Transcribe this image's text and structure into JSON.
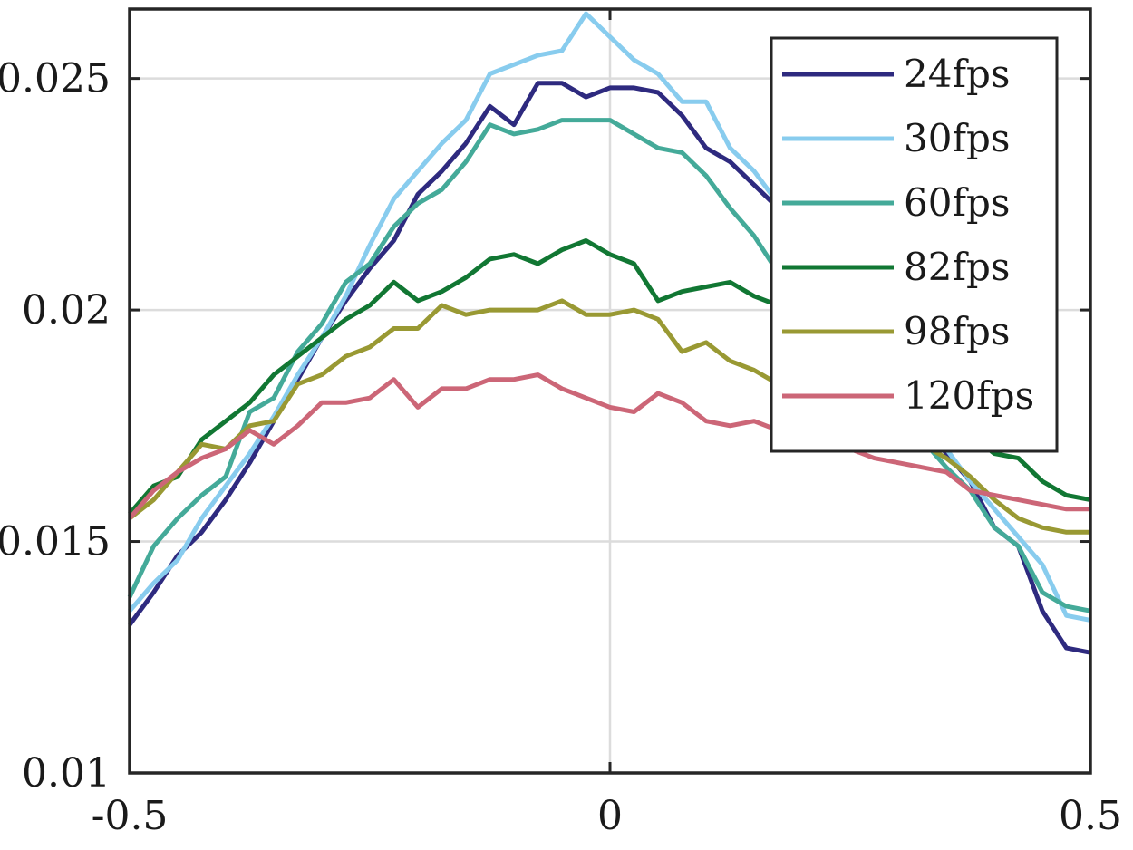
{
  "chart_data": {
    "type": "line",
    "title": "",
    "xlabel": "",
    "ylabel": "",
    "xlim": [
      -0.5,
      0.5
    ],
    "ylim": [
      0.01,
      0.0265
    ],
    "grid": true,
    "legend_position": "top-right",
    "x_ticks": [
      {
        "value": -0.5,
        "label": "-0.5"
      },
      {
        "value": 0,
        "label": "0"
      },
      {
        "value": 0.5,
        "label": "0.5"
      }
    ],
    "y_ticks": [
      {
        "value": 0.01,
        "label": "0.01"
      },
      {
        "value": 0.015,
        "label": "0.015"
      },
      {
        "value": 0.02,
        "label": "0.02"
      },
      {
        "value": 0.025,
        "label": "0.025"
      }
    ],
    "x": [
      -0.5,
      -0.475,
      -0.45,
      -0.425,
      -0.4,
      -0.375,
      -0.35,
      -0.325,
      -0.3,
      -0.275,
      -0.25,
      -0.225,
      -0.2,
      -0.175,
      -0.15,
      -0.125,
      -0.1,
      -0.075,
      -0.05,
      -0.025,
      0,
      0.025,
      0.05,
      0.075,
      0.1,
      0.125,
      0.15,
      0.175,
      0.2,
      0.225,
      0.25,
      0.275,
      0.3,
      0.325,
      0.35,
      0.375,
      0.4,
      0.425,
      0.45,
      0.475,
      0.5
    ],
    "series": [
      {
        "name": "24fps",
        "color": "#2e2a7f",
        "values": [
          0.0132,
          0.0139,
          0.0147,
          0.0152,
          0.0159,
          0.0167,
          0.0176,
          0.0185,
          0.0194,
          0.0202,
          0.0209,
          0.0215,
          0.0225,
          0.023,
          0.0236,
          0.0244,
          0.024,
          0.0249,
          0.0249,
          0.0246,
          0.0248,
          0.0248,
          0.0247,
          0.0242,
          0.0235,
          0.0232,
          0.0227,
          0.0222,
          0.0216,
          0.0209,
          0.0201,
          0.0193,
          0.0184,
          0.0176,
          0.0169,
          0.0163,
          0.0153,
          0.0149,
          0.0135,
          0.0127,
          0.0126
        ]
      },
      {
        "name": "30fps",
        "color": "#88ccee",
        "values": [
          0.0135,
          0.0141,
          0.0146,
          0.0155,
          0.0162,
          0.0169,
          0.0177,
          0.0186,
          0.0194,
          0.0203,
          0.0214,
          0.0224,
          0.023,
          0.0236,
          0.0241,
          0.0251,
          0.0253,
          0.0255,
          0.0256,
          0.0264,
          0.0259,
          0.0254,
          0.0251,
          0.0245,
          0.0245,
          0.0235,
          0.023,
          0.0223,
          0.0216,
          0.0209,
          0.0202,
          0.0194,
          0.0186,
          0.0178,
          0.017,
          0.0163,
          0.0157,
          0.0151,
          0.0145,
          0.0134,
          0.0133
        ]
      },
      {
        "name": "60fps",
        "color": "#44aa99",
        "values": [
          0.0138,
          0.0149,
          0.0155,
          0.016,
          0.0164,
          0.0178,
          0.0181,
          0.0191,
          0.0197,
          0.0206,
          0.021,
          0.0218,
          0.0223,
          0.0226,
          0.0232,
          0.024,
          0.0238,
          0.0239,
          0.0241,
          0.0241,
          0.0241,
          0.0238,
          0.0235,
          0.0234,
          0.0229,
          0.0222,
          0.0216,
          0.0208,
          0.0202,
          0.0196,
          0.019,
          0.0183,
          0.0177,
          0.0172,
          0.0166,
          0.0161,
          0.0153,
          0.0149,
          0.0139,
          0.0136,
          0.0135
        ]
      },
      {
        "name": "82fps",
        "color": "#117733",
        "values": [
          0.0156,
          0.0162,
          0.0164,
          0.0172,
          0.0176,
          0.018,
          0.0186,
          0.019,
          0.0194,
          0.0198,
          0.0201,
          0.0206,
          0.0202,
          0.0204,
          0.0207,
          0.0211,
          0.0212,
          0.021,
          0.0213,
          0.0215,
          0.0212,
          0.021,
          0.0202,
          0.0204,
          0.0205,
          0.0206,
          0.0203,
          0.0201,
          0.0198,
          0.0194,
          0.019,
          0.0186,
          0.0182,
          0.0179,
          0.0176,
          0.0173,
          0.0169,
          0.0168,
          0.0163,
          0.016,
          0.0159
        ]
      },
      {
        "name": "98fps",
        "color": "#999933",
        "values": [
          0.0155,
          0.0159,
          0.0165,
          0.0171,
          0.017,
          0.0175,
          0.0176,
          0.0184,
          0.0186,
          0.019,
          0.0192,
          0.0196,
          0.0196,
          0.0201,
          0.0199,
          0.02,
          0.02,
          0.02,
          0.0202,
          0.0199,
          0.0199,
          0.02,
          0.0198,
          0.0191,
          0.0193,
          0.0189,
          0.0187,
          0.0184,
          0.0182,
          0.018,
          0.0178,
          0.0176,
          0.0174,
          0.0171,
          0.0168,
          0.0164,
          0.0159,
          0.0155,
          0.0153,
          0.0152,
          0.0152
        ]
      },
      {
        "name": "120fps",
        "color": "#cc6677",
        "values": [
          0.0155,
          0.0161,
          0.0165,
          0.0168,
          0.017,
          0.0174,
          0.0171,
          0.0175,
          0.018,
          0.018,
          0.0181,
          0.0185,
          0.0179,
          0.0183,
          0.0183,
          0.0185,
          0.0185,
          0.0186,
          0.0183,
          0.0181,
          0.0179,
          0.0178,
          0.0182,
          0.018,
          0.0176,
          0.0175,
          0.0176,
          0.0174,
          0.0173,
          0.0172,
          0.017,
          0.0168,
          0.0167,
          0.0166,
          0.0165,
          0.0161,
          0.016,
          0.0159,
          0.0158,
          0.0157,
          0.0157
        ]
      }
    ]
  }
}
